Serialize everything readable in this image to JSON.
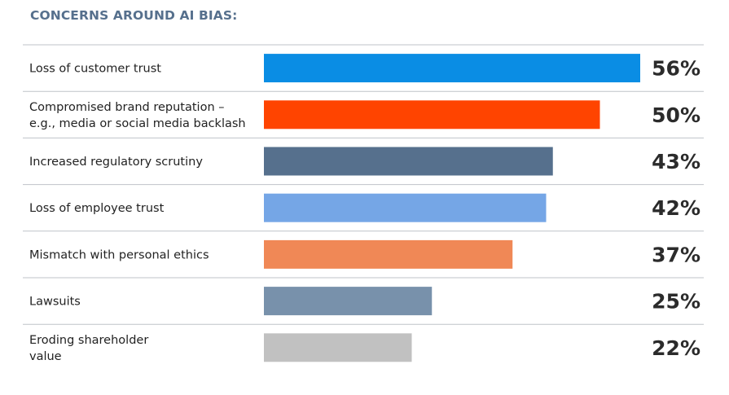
{
  "chart_data": {
    "type": "bar",
    "orientation": "horizontal",
    "title": "CONCERNS AROUND AI BIAS:",
    "categories": [
      [
        "Loss of customer trust"
      ],
      [
        "Compromised brand reputation –",
        "e.g., media or social media backlash"
      ],
      [
        "Increased regulatory scrutiny"
      ],
      [
        "Loss of employee trust"
      ],
      [
        "Mismatch with personal ethics"
      ],
      [
        "Lawsuits"
      ],
      [
        "Eroding shareholder",
        "value"
      ]
    ],
    "values": [
      56,
      50,
      43,
      42,
      37,
      25,
      22
    ],
    "value_labels": [
      "56%",
      "50%",
      "43%",
      "42%",
      "37%",
      "25%",
      "22%"
    ],
    "bar_colors": [
      "#0a8de4",
      "#ff4400",
      "#56708d",
      "#75a6e6",
      "#f08856",
      "#7891ab",
      "#c1c1c1"
    ],
    "unit": "%",
    "xlim": [
      0,
      56
    ],
    "grid": false,
    "legend": "none"
  }
}
